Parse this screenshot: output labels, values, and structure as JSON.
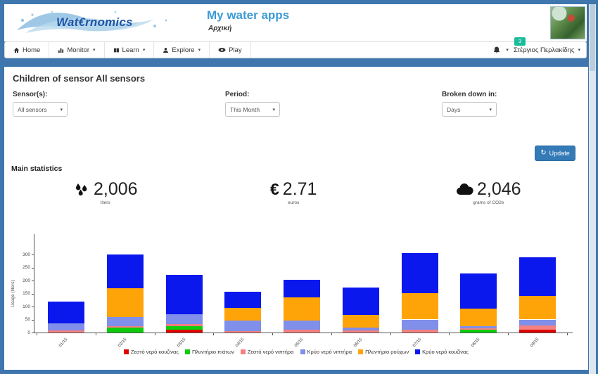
{
  "header": {
    "logo_text": "Wat€rnomics",
    "title": "My water apps",
    "subtitle": "Αρχική"
  },
  "nav": {
    "items": [
      {
        "label": "Home",
        "icon": "home-icon",
        "dropdown": false
      },
      {
        "label": "Monitor",
        "icon": "monitor-icon",
        "dropdown": true
      },
      {
        "label": "Learn",
        "icon": "learn-icon",
        "dropdown": true
      },
      {
        "label": "Explore",
        "icon": "explore-icon",
        "dropdown": true
      },
      {
        "label": "Play",
        "icon": "play-icon",
        "dropdown": false
      }
    ],
    "notification_badge": "3",
    "user_name": "Στέργιος Περλακίδης"
  },
  "content": {
    "heading": "Children of sensor All sensors",
    "filters": [
      {
        "label": "Sensor(s):",
        "value": "All sensors"
      },
      {
        "label": "Period:",
        "value": "This Month"
      },
      {
        "label": "Broken down in:",
        "value": "Days"
      }
    ],
    "update_label": "Update",
    "stats_heading": "Main statistics",
    "stats": [
      {
        "icon": "water-drops-icon",
        "value": "2,006",
        "unit": "liters"
      },
      {
        "icon": "euro-icon",
        "value": "2.71",
        "unit": "euros"
      },
      {
        "icon": "cloud-icon",
        "value": "2,046",
        "unit": "grams of CO2e"
      }
    ]
  },
  "chart_data": {
    "type": "bar",
    "stacked": true,
    "ylabel": "Usage (liters)",
    "ylim": [
      0,
      300
    ],
    "yticks": [
      0,
      50,
      100,
      150,
      200,
      250,
      300
    ],
    "grid": false,
    "legend_position": "bottom",
    "categories": [
      "01/15",
      "02/15",
      "03/15",
      "04/15",
      "05/15",
      "06/15",
      "07/15",
      "08/15",
      "09/15"
    ],
    "series": [
      {
        "name": "Ζεστό νερό κουζίνας",
        "color": "#e00000",
        "values": [
          0,
          0,
          12,
          0,
          0,
          0,
          0,
          0,
          10
        ]
      },
      {
        "name": "Πλυντήριο πιάτων",
        "color": "#0ccc0c",
        "values": [
          0,
          20,
          12,
          0,
          0,
          0,
          0,
          12,
          0
        ]
      },
      {
        "name": "Ζεστό νερό νιπτήρα",
        "color": "#f48080",
        "values": [
          8,
          5,
          8,
          5,
          10,
          8,
          10,
          3,
          18
        ]
      },
      {
        "name": "Κρύο νερό νιπτήρα",
        "color": "#7f8fea",
        "values": [
          27,
          35,
          38,
          40,
          35,
          12,
          40,
          10,
          22
        ]
      },
      {
        "name": "Πλυντήριο ρούχων",
        "color": "#ffa408",
        "values": [
          0,
          110,
          0,
          50,
          90,
          48,
          102,
          68,
          90
        ]
      },
      {
        "name": "Κρύο νερό κουζίνας",
        "color": "#0a18ee",
        "values": [
          85,
          130,
          152,
          62,
          68,
          104,
          153,
          135,
          150
        ]
      }
    ]
  }
}
